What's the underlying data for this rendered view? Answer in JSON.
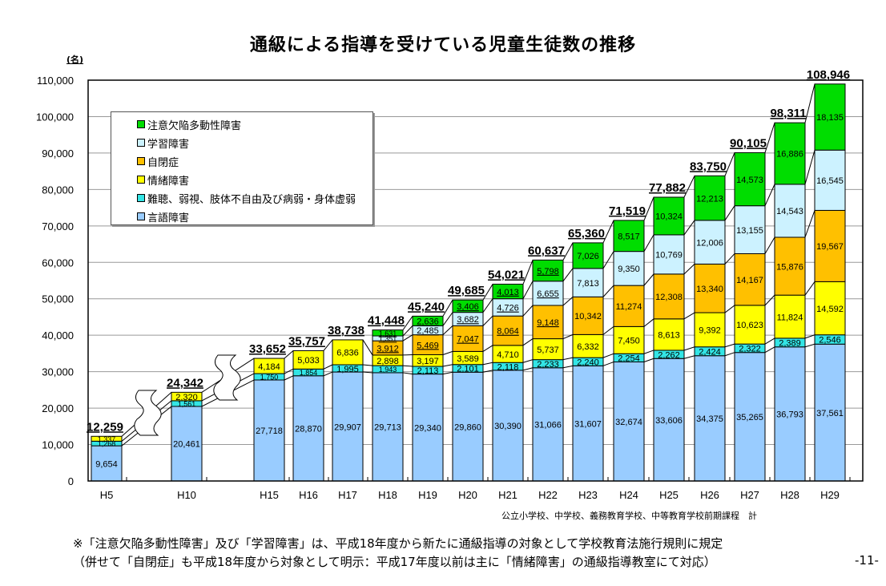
{
  "page_number": "-11-",
  "source_note": "公立小学校、中学校、義務教育学校、中等教育学校前期課程　計",
  "footnotes": [
    "※「注意欠陥多動性障害」及び「学習障害」は、平成18年度から新たに通級指導の対象として学校教育法施行規則に規定",
    "（併せて「自閉症」も平成18年度から対象として明示：平成17年度以前は主に「情緒障害」の通級指導教室にて対応）"
  ],
  "chart_data": {
    "type": "bar",
    "stacked": true,
    "title": "通級による指導を受けている児童生徒数の推移",
    "ylabel": "(名)",
    "xlabel": "",
    "ylim": [
      0,
      110000
    ],
    "yticks": [
      0,
      10000,
      20000,
      30000,
      40000,
      50000,
      60000,
      70000,
      80000,
      90000,
      100000,
      110000
    ],
    "ytick_labels": [
      "0",
      "10,000",
      "20,000",
      "30,000",
      "40,000",
      "50,000",
      "60,000",
      "70,000",
      "80,000",
      "90,000",
      "100,000",
      "110,000"
    ],
    "grid": true,
    "legend_position": "top-left",
    "axis_breaks": [
      "H5-H10",
      "H10-H15"
    ],
    "categories": [
      "H5",
      "H10",
      "H15",
      "H16",
      "H17",
      "H18",
      "H19",
      "H20",
      "H21",
      "H22",
      "H23",
      "H24",
      "H25",
      "H26",
      "H27",
      "H28",
      "H29"
    ],
    "totals": [
      12259,
      24342,
      33652,
      35757,
      38738,
      41448,
      45240,
      49685,
      54021,
      60637,
      65360,
      71519,
      77882,
      83750,
      90105,
      98311,
      108946
    ],
    "total_labels": [
      "12,259",
      "24,342",
      "33,652",
      "35,757",
      "38,738",
      "41,448",
      "45,240",
      "49,685",
      "54,021",
      "60,637",
      "65,360",
      "71,519",
      "77,882",
      "83,750",
      "90,105",
      "98,311",
      "108,946"
    ],
    "series": [
      {
        "name": "言語障害",
        "color": "#99ccff",
        "values": [
          9654,
          20461,
          27718,
          28870,
          29907,
          29713,
          29340,
          29860,
          30390,
          31066,
          31607,
          32674,
          33606,
          34375,
          35265,
          36793,
          37561
        ]
      },
      {
        "name": "難聴、弱視、肢体不自由及び病弱・身体虚弱",
        "color": "#33e5e5",
        "values": [
          1268,
          1561,
          1750,
          1854,
          1995,
          1943,
          2113,
          2101,
          2118,
          2233,
          2240,
          2254,
          2262,
          2424,
          2322,
          2389,
          2546
        ]
      },
      {
        "name": "情緒障害",
        "color": "#ffff00",
        "values": [
          1337,
          2320,
          4184,
          5033,
          6836,
          2898,
          3197,
          3589,
          4710,
          5737,
          6332,
          7450,
          8613,
          9392,
          10623,
          11824,
          14592
        ]
      },
      {
        "name": "自閉症",
        "color": "#ffc000",
        "values": [
          null,
          null,
          null,
          null,
          null,
          3912,
          5469,
          7047,
          8064,
          9148,
          10342,
          11274,
          12308,
          13340,
          14167,
          15876,
          19567
        ]
      },
      {
        "name": "学習障害",
        "color": "#ccf2ff",
        "values": [
          null,
          null,
          null,
          null,
          null,
          1351,
          2485,
          3682,
          4726,
          6655,
          7813,
          9350,
          10769,
          12006,
          13155,
          14543,
          16545
        ]
      },
      {
        "name": "注意欠陥多動性障害",
        "color": "#00dd00",
        "values": [
          null,
          null,
          null,
          null,
          null,
          1631,
          2636,
          3406,
          4013,
          5798,
          7026,
          8517,
          10324,
          12213,
          14573,
          16886,
          18135
        ]
      }
    ],
    "legend_order": [
      "注意欠陥多動性障害",
      "学習障害",
      "自閉症",
      "情緒障害",
      "難聴、弱視、肢体不自由及び病弱・身体虚弱",
      "言語障害"
    ]
  }
}
